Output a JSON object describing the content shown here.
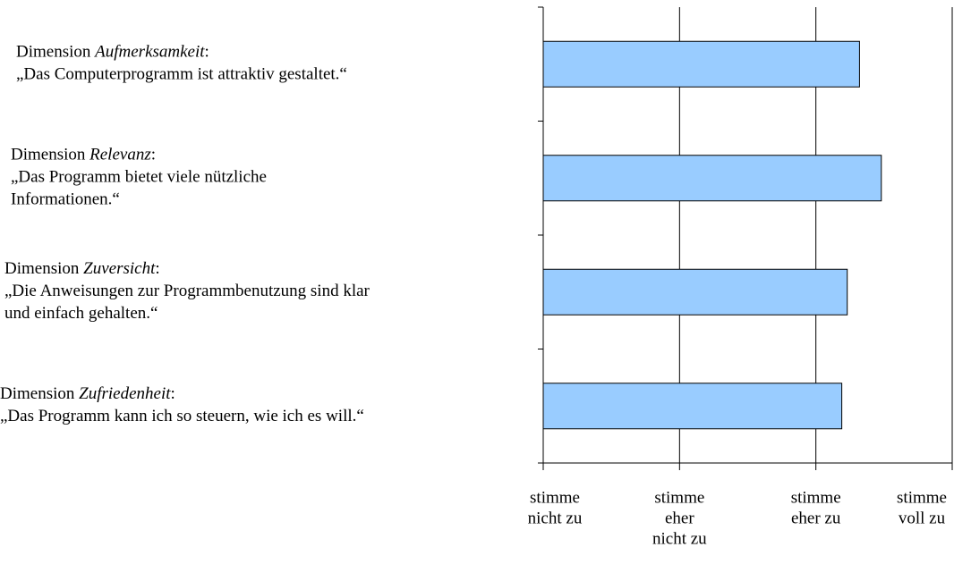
{
  "chart_data": {
    "type": "barh",
    "categories": [
      [
        "Dimension ",
        "Aufmerksamkeit",
        ":",
        "„Das Computerprogramm ist attraktiv gestaltet.“"
      ],
      [
        "Dimension ",
        "Relevanz",
        ":",
        "„Das Programm bietet viele nützliche",
        "Informationen.“"
      ],
      [
        "Dimension ",
        "Zuversicht",
        ":",
        "„Die Anweisungen zur Programmbenutzung sind klar",
        "und einfach gehalten.“"
      ],
      [
        "Dimension ",
        "Zufriedenheit",
        ":",
        "„Das Programm kann ich so steuern, wie ich es will.“"
      ]
    ],
    "values": [
      3.32,
      3.48,
      3.23,
      3.19
    ],
    "color": "#99ccff",
    "xlim": [
      1,
      4
    ],
    "xticks": [
      {
        "value": 1,
        "label": [
          "stimme",
          "nicht zu"
        ]
      },
      {
        "value": 2,
        "label": [
          "stimme",
          "eher",
          "nicht zu"
        ]
      },
      {
        "value": 3,
        "label": [
          "stimme",
          "eher zu"
        ]
      },
      {
        "value": 4,
        "label": [
          "stimme",
          "voll zu"
        ]
      }
    ],
    "grid": true
  }
}
